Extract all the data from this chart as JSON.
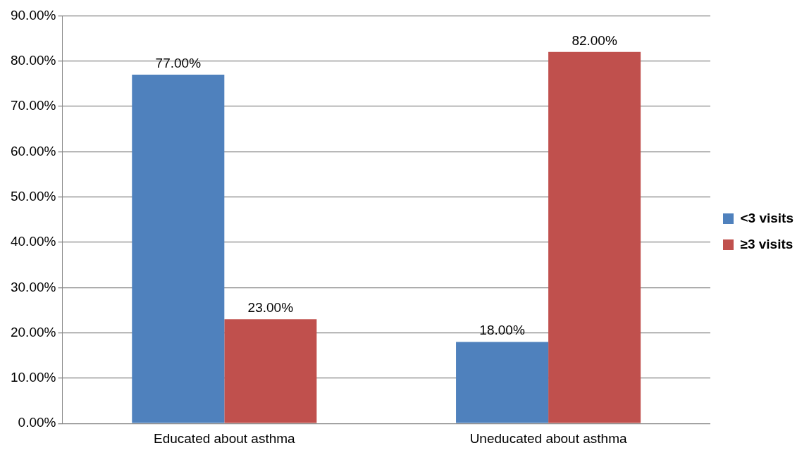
{
  "chart_data": {
    "type": "bar",
    "categories": [
      "Educated about asthma",
      "Uneducated about asthma"
    ],
    "series": [
      {
        "name": "<3 visits",
        "color": "#4f81bd",
        "values": [
          77,
          18
        ],
        "value_labels": [
          "77.00%",
          "18.00%"
        ]
      },
      {
        "name": "≥3 visits",
        "color": "#c0504d",
        "values": [
          23,
          82
        ],
        "value_labels": [
          "23.00%",
          "82.00%"
        ]
      }
    ],
    "ylim": [
      0,
      90
    ],
    "yticks": [
      {
        "value": 0,
        "label": "0.00%"
      },
      {
        "value": 10,
        "label": "10.00%"
      },
      {
        "value": 20,
        "label": "20.00%"
      },
      {
        "value": 30,
        "label": "30.00%"
      },
      {
        "value": 40,
        "label": "40.00%"
      },
      {
        "value": 50,
        "label": "50.00%"
      },
      {
        "value": 60,
        "label": "60.00%"
      },
      {
        "value": 70,
        "label": "70.00%"
      },
      {
        "value": 80,
        "label": "80.00%"
      },
      {
        "value": 90,
        "label": "90.00%"
      }
    ],
    "grid": "y",
    "legend": "right"
  }
}
